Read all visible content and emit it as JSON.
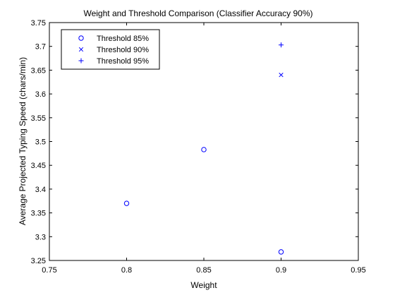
{
  "chart_data": {
    "type": "scatter",
    "title": "Weight and Threshold Comparison (Classifier Accuracy 90%)",
    "xlabel": "Weight",
    "ylabel": "Average Projected Typing Speed (chars/min)",
    "xlim": [
      0.75,
      0.95
    ],
    "ylim": [
      3.25,
      3.75
    ],
    "xticks": [
      0.75,
      0.8,
      0.85,
      0.9,
      0.95
    ],
    "xtick_labels": [
      "0.75",
      "0.8",
      "0.85",
      "0.9",
      "0.95"
    ],
    "yticks": [
      3.25,
      3.3,
      3.35,
      3.4,
      3.45,
      3.5,
      3.55,
      3.6,
      3.65,
      3.7,
      3.75
    ],
    "ytick_labels": [
      "3.25",
      "3.3",
      "3.35",
      "3.4",
      "3.45",
      "3.5",
      "3.55",
      "3.6",
      "3.65",
      "3.7",
      "3.75"
    ],
    "grid": false,
    "legend_position": "top-left",
    "series": [
      {
        "name": "Threshold 85%",
        "marker": "circle",
        "color": "#0000ff",
        "x": [
          0.8,
          0.85,
          0.9
        ],
        "y": [
          3.37,
          3.483,
          3.268
        ]
      },
      {
        "name": "Threshold 90%",
        "marker": "x",
        "color": "#0000ff",
        "x": [
          0.9
        ],
        "y": [
          3.64
        ]
      },
      {
        "name": "Threshold 95%",
        "marker": "plus",
        "color": "#0000ff",
        "x": [
          0.9
        ],
        "y": [
          3.703
        ]
      }
    ]
  }
}
